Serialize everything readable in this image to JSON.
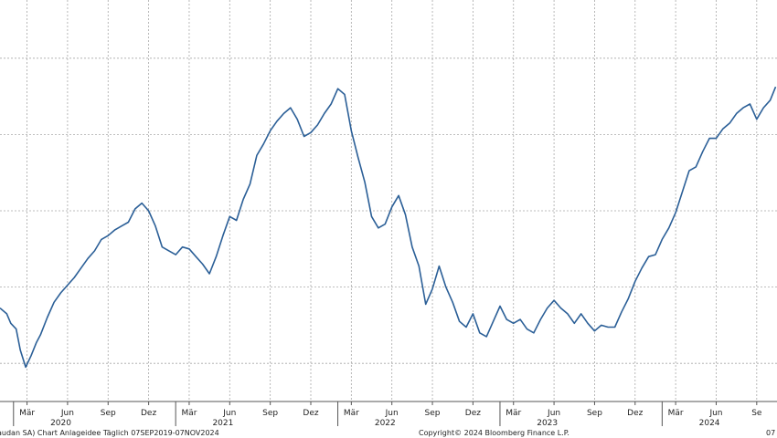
{
  "chart_data": {
    "type": "line",
    "series": [
      {
        "values": [
          [
            -8.5,
            2.45
          ],
          [
            -8.0,
            2.3
          ],
          [
            -7.7,
            2.05
          ],
          [
            -7.3,
            1.9
          ],
          [
            -7.0,
            1.35
          ],
          [
            -6.6,
            0.9
          ],
          [
            -6.2,
            1.2
          ],
          [
            -5.8,
            1.55
          ],
          [
            -5.5,
            1.75
          ],
          [
            -5.0,
            2.2
          ],
          [
            -4.5,
            2.6
          ],
          [
            -4.0,
            2.85
          ],
          [
            -3.5,
            3.05
          ],
          [
            -3.0,
            3.25
          ],
          [
            -2.5,
            3.5
          ],
          [
            -2.0,
            3.75
          ],
          [
            -1.5,
            3.95
          ],
          [
            -1.0,
            4.25
          ],
          [
            -0.5,
            4.35
          ],
          [
            0.0,
            4.5
          ],
          [
            0.5,
            4.6
          ],
          [
            1.0,
            4.7
          ],
          [
            1.5,
            5.05
          ],
          [
            2.0,
            5.2
          ],
          [
            2.5,
            5.0
          ],
          [
            3.0,
            4.6
          ],
          [
            3.5,
            4.05
          ],
          [
            4.0,
            3.95
          ],
          [
            4.5,
            3.85
          ],
          [
            5.0,
            4.05
          ],
          [
            5.5,
            4.0
          ],
          [
            6.0,
            3.8
          ],
          [
            6.5,
            3.6
          ],
          [
            7.0,
            3.35
          ],
          [
            7.5,
            3.8
          ],
          [
            8.0,
            4.35
          ],
          [
            8.5,
            4.85
          ],
          [
            9.0,
            4.75
          ],
          [
            9.5,
            5.3
          ],
          [
            10.0,
            5.7
          ],
          [
            10.5,
            6.45
          ],
          [
            11.0,
            6.75
          ],
          [
            11.5,
            7.1
          ],
          [
            12.0,
            7.35
          ],
          [
            12.5,
            7.55
          ],
          [
            13.0,
            7.7
          ],
          [
            13.5,
            7.4
          ],
          [
            14.0,
            6.95
          ],
          [
            14.5,
            7.05
          ],
          [
            15.0,
            7.25
          ],
          [
            15.5,
            7.55
          ],
          [
            16.0,
            7.8
          ],
          [
            16.5,
            8.2
          ],
          [
            17.0,
            8.05
          ],
          [
            17.5,
            7.1
          ],
          [
            18.0,
            6.4
          ],
          [
            18.5,
            5.75
          ],
          [
            19.0,
            4.85
          ],
          [
            19.5,
            4.55
          ],
          [
            20.0,
            4.65
          ],
          [
            20.5,
            5.1
          ],
          [
            21.0,
            5.4
          ],
          [
            21.5,
            4.9
          ],
          [
            22.0,
            4.05
          ],
          [
            22.5,
            3.55
          ],
          [
            23.0,
            2.55
          ],
          [
            23.5,
            2.95
          ],
          [
            24.0,
            3.55
          ],
          [
            24.5,
            3.0
          ],
          [
            25.0,
            2.6
          ],
          [
            25.5,
            2.1
          ],
          [
            26.0,
            1.95
          ],
          [
            26.5,
            2.3
          ],
          [
            27.0,
            1.8
          ],
          [
            27.5,
            1.7
          ],
          [
            28.0,
            2.1
          ],
          [
            28.5,
            2.5
          ],
          [
            29.0,
            2.15
          ],
          [
            29.5,
            2.05
          ],
          [
            30.0,
            2.15
          ],
          [
            30.5,
            1.9
          ],
          [
            31.0,
            1.8
          ],
          [
            31.5,
            2.15
          ],
          [
            32.0,
            2.45
          ],
          [
            32.5,
            2.65
          ],
          [
            33.0,
            2.45
          ],
          [
            33.5,
            2.3
          ],
          [
            34.0,
            2.05
          ],
          [
            34.5,
            2.3
          ],
          [
            35.0,
            2.05
          ],
          [
            35.5,
            1.85
          ],
          [
            36.0,
            2.0
          ],
          [
            36.5,
            1.95
          ],
          [
            37.0,
            1.95
          ],
          [
            37.5,
            2.35
          ],
          [
            38.0,
            2.7
          ],
          [
            38.5,
            3.15
          ],
          [
            39.0,
            3.5
          ],
          [
            39.5,
            3.8
          ],
          [
            40.0,
            3.85
          ],
          [
            40.5,
            4.25
          ],
          [
            41.0,
            4.55
          ],
          [
            41.5,
            4.95
          ],
          [
            42.0,
            5.5
          ],
          [
            42.5,
            6.05
          ],
          [
            43.0,
            6.15
          ],
          [
            43.5,
            6.55
          ],
          [
            44.0,
            6.9
          ],
          [
            44.5,
            6.9
          ],
          [
            45.0,
            7.15
          ],
          [
            45.5,
            7.3
          ],
          [
            46.0,
            7.55
          ],
          [
            46.5,
            7.7
          ],
          [
            47.0,
            7.8
          ],
          [
            47.5,
            7.4
          ],
          [
            48.0,
            7.7
          ],
          [
            48.5,
            7.9
          ],
          [
            48.9,
            8.25
          ]
        ]
      }
    ],
    "x_ticks": [
      {
        "x": -6.5,
        "label": "Mär"
      },
      {
        "x": -3.5,
        "label": "Jun"
      },
      {
        "x": -0.5,
        "label": "Sep"
      },
      {
        "x": 2.5,
        "label": "Dez"
      },
      {
        "x": 5.5,
        "label": "Mär"
      },
      {
        "x": 8.5,
        "label": "Jun"
      },
      {
        "x": 11.5,
        "label": "Sep"
      },
      {
        "x": 14.5,
        "label": "Dez"
      },
      {
        "x": 17.5,
        "label": "Mär"
      },
      {
        "x": 20.5,
        "label": "Jun"
      },
      {
        "x": 23.5,
        "label": "Sep"
      },
      {
        "x": 26.5,
        "label": "Dez"
      },
      {
        "x": 29.5,
        "label": "Mär"
      },
      {
        "x": 32.5,
        "label": "Jun"
      },
      {
        "x": 35.5,
        "label": "Sep"
      },
      {
        "x": 38.5,
        "label": "Dez"
      },
      {
        "x": 41.5,
        "label": "Mär"
      },
      {
        "x": 44.5,
        "label": "Jun"
      },
      {
        "x": 47.5,
        "label": "Se"
      }
    ],
    "year_labels": [
      {
        "x": -4.0,
        "label": "2020"
      },
      {
        "x": 8.0,
        "label": "2021"
      },
      {
        "x": 20.0,
        "label": "2022"
      },
      {
        "x": 32.0,
        "label": "2023"
      },
      {
        "x": 44.0,
        "label": "2024"
      }
    ],
    "year_separators": [
      -7.5,
      4.5,
      16.5,
      28.5,
      40.5
    ],
    "y_gridlines": [
      1,
      3,
      5,
      7,
      9
    ],
    "x_range": [
      -8.5,
      49.0
    ],
    "y_range": [
      0,
      10
    ],
    "grid": true,
    "line_color": "#2b5f97"
  },
  "footer": {
    "left": "audan SA) Chart Anlageidee  Täglich 07SEP2019-07NOV2024",
    "center": "Copyright© 2024 Bloomberg Finance L.P.",
    "right": "07"
  }
}
